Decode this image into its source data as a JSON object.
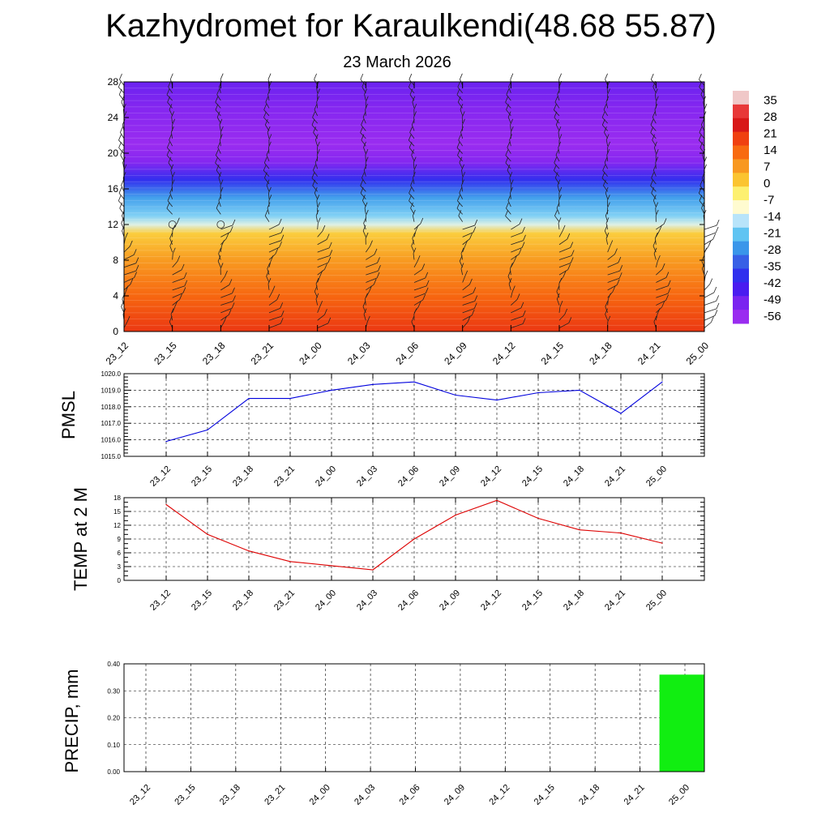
{
  "title": "Kazhydromet for Karaulkendi(48.68 55.87)",
  "subtitle": "23 March 2026",
  "chart_data": [
    {
      "type": "heatmap",
      "name": "vertical-section",
      "x_ticks": [
        "23_12",
        "23_15",
        "23_18",
        "23_21",
        "24_00",
        "24_03",
        "24_06",
        "24_09",
        "24_12",
        "24_15",
        "24_18",
        "24_21",
        "25_00"
      ],
      "y_ticks": [
        "0",
        "4",
        "8",
        "12",
        "16",
        "20",
        "24",
        "28"
      ],
      "ylim": [
        0,
        28
      ],
      "colorbar_labels": [
        "35",
        "28",
        "21",
        "14",
        "7",
        "0",
        "-7",
        "-14",
        "-21",
        "-28",
        "-35",
        "-42",
        "-49",
        "-56"
      ],
      "colorbar_colors": [
        "#f0c8c8",
        "#e83838",
        "#d81818",
        "#f04010",
        "#f86a10",
        "#f89820",
        "#fbc430",
        "#fdf070",
        "#fffbd0",
        "#b8e4fa",
        "#60c4f2",
        "#3a96ea",
        "#3860e6",
        "#3030ee",
        "#4a1cf0",
        "#7a24f0",
        "#9a2cf0"
      ],
      "temperature_profile": {
        "height": [
          0,
          4,
          8,
          11,
          12,
          13,
          15,
          17,
          19,
          21,
          25,
          28
        ],
        "temp": [
          21,
          14,
          7,
          0,
          -14,
          -21,
          -28,
          -42,
          -56,
          -60,
          -56,
          -52
        ]
      },
      "wind_barb_grid": "shown"
    },
    {
      "type": "line",
      "name": "pmsl",
      "ylabel": "PMSL",
      "categories": [
        "23_12",
        "23_15",
        "23_18",
        "23_21",
        "24_00",
        "24_03",
        "24_06",
        "24_09",
        "24_12",
        "24_15",
        "24_18",
        "24_21",
        "25_00"
      ],
      "values": [
        1015.9,
        1016.6,
        1018.5,
        1018.5,
        1019.0,
        1019.35,
        1019.5,
        1018.7,
        1018.4,
        1018.85,
        1019.0,
        1017.6,
        1019.5
      ],
      "ylim": [
        1015.0,
        1020.0
      ],
      "y_ticks": [
        "1015.0",
        "1016.0",
        "1017.0",
        "1018.0",
        "1019.0",
        "1020.0"
      ],
      "color": "#0000dd",
      "grid": true
    },
    {
      "type": "line",
      "name": "temp2m",
      "ylabel": "TEMP at 2 M",
      "categories": [
        "23_12",
        "23_15",
        "23_18",
        "23_21",
        "24_00",
        "24_03",
        "24_06",
        "24_09",
        "24_12",
        "24_15",
        "24_18",
        "24_21",
        "25_00"
      ],
      "values": [
        16.5,
        10.0,
        6.4,
        4.1,
        3.2,
        2.3,
        9.0,
        14.2,
        17.4,
        13.5,
        11.0,
        10.3,
        8.1
      ],
      "ylim": [
        0,
        18
      ],
      "y_ticks": [
        "0",
        "3",
        "6",
        "9",
        "12",
        "15",
        "18"
      ],
      "color": "#dd0000",
      "grid": true
    },
    {
      "type": "bar",
      "name": "precip",
      "ylabel": "PRECIP, mm",
      "categories": [
        "23_12",
        "23_15",
        "23_18",
        "23_21",
        "24_00",
        "24_03",
        "24_06",
        "24_09",
        "24_12",
        "24_15",
        "24_18",
        "24_21",
        "25_00"
      ],
      "values": [
        0,
        0,
        0,
        0,
        0,
        0,
        0,
        0,
        0,
        0,
        0,
        0,
        0.36
      ],
      "ylim": [
        0,
        0.4
      ],
      "y_ticks": [
        "0.00",
        "0.10",
        "0.20",
        "0.30",
        "0.40"
      ],
      "color": "#11ee11",
      "grid": true
    }
  ]
}
